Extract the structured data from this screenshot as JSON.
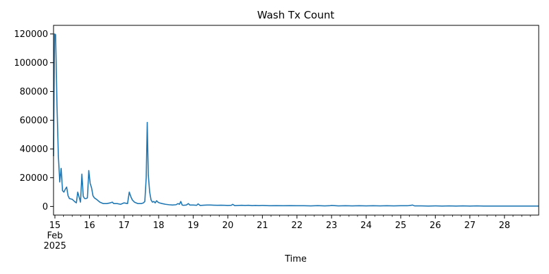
{
  "chart_data": {
    "type": "line",
    "title": "Wash Tx Count",
    "xlabel": "Time",
    "ylabel": "",
    "x_unit": "2025-02 (day of month, fractional)",
    "xlim": [
      14.96,
      28.99
    ],
    "ylim": [
      -6000,
      126000
    ],
    "x_tick_values": [
      15,
      16,
      17,
      18,
      19,
      20,
      21,
      22,
      23,
      24,
      25,
      26,
      27,
      28
    ],
    "x_tick_labels": [
      "15",
      "16",
      "17",
      "18",
      "19",
      "20",
      "21",
      "22",
      "23",
      "24",
      "25",
      "26",
      "27",
      "28"
    ],
    "x_tick_sub": [
      "Feb",
      "2025"
    ],
    "y_tick_values": [
      0,
      20000,
      40000,
      60000,
      80000,
      100000,
      120000
    ],
    "y_tick_labels": [
      "0",
      "20000",
      "40000",
      "60000",
      "80000",
      "100000",
      "120000"
    ],
    "grid": false,
    "color": "#1f77b4",
    "series": [
      {
        "x": [
          14.96,
          14.99,
          15.02,
          15.06,
          15.1,
          15.14,
          15.18,
          15.22,
          15.26,
          15.3,
          15.34,
          15.38,
          15.42,
          15.5,
          15.58,
          15.62,
          15.66,
          15.74,
          15.78,
          15.82,
          15.86,
          15.9,
          15.94,
          15.98,
          16.02,
          16.06,
          16.1,
          16.14,
          16.2,
          16.3,
          16.4,
          16.5,
          16.6,
          16.66,
          16.7,
          16.8,
          16.9,
          17.0,
          17.1,
          17.15,
          17.2,
          17.24,
          17.3,
          17.4,
          17.5,
          17.56,
          17.6,
          17.64,
          17.67,
          17.7,
          17.74,
          17.78,
          17.82,
          17.86,
          17.9,
          17.94,
          17.98,
          18.02,
          18.1,
          18.2,
          18.3,
          18.4,
          18.5,
          18.56,
          18.6,
          18.64,
          18.68,
          18.72,
          18.8,
          18.86,
          18.9,
          19.0,
          19.1,
          19.14,
          19.2,
          19.3,
          19.4,
          19.5,
          19.6,
          19.7,
          19.8,
          19.9,
          20.0,
          20.1,
          20.14,
          20.2,
          20.3,
          20.4,
          20.5,
          20.6,
          20.7,
          20.8,
          20.9,
          21.0,
          21.2,
          21.4,
          21.6,
          21.8,
          22.0,
          22.2,
          22.4,
          22.6,
          22.8,
          22.94,
          23.0,
          23.2,
          23.4,
          23.6,
          23.8,
          24.0,
          24.2,
          24.4,
          24.6,
          24.8,
          25.0,
          25.2,
          25.3,
          25.34,
          25.4,
          25.6,
          25.8,
          26.0,
          26.2,
          26.4,
          26.6,
          26.8,
          27.0,
          27.2,
          27.4,
          27.6,
          27.8,
          28.0,
          28.2,
          28.4,
          28.6,
          28.8,
          28.99
        ],
        "y": [
          35000,
          120000,
          119500,
          70000,
          35000,
          17000,
          26500,
          11000,
          10000,
          12000,
          13500,
          7500,
          5500,
          5000,
          3200,
          2500,
          10000,
          3000,
          22500,
          7000,
          5500,
          5500,
          6000,
          25000,
          16000,
          13000,
          7500,
          6000,
          5000,
          3000,
          2000,
          2000,
          2500,
          3000,
          2000,
          2000,
          1500,
          2500,
          2000,
          10000,
          6500,
          4500,
          3000,
          2000,
          2000,
          2500,
          3500,
          20000,
          58500,
          22000,
          10000,
          4500,
          3000,
          3500,
          2500,
          4000,
          3000,
          2500,
          2000,
          1500,
          1200,
          1000,
          1200,
          2000,
          1500,
          3500,
          1000,
          800,
          1000,
          2000,
          1000,
          1000,
          800,
          1800,
          700,
          900,
          1000,
          1000,
          900,
          800,
          900,
          800,
          700,
          800,
          1500,
          600,
          700,
          800,
          700,
          800,
          600,
          700,
          600,
          700,
          500,
          600,
          500,
          600,
          500,
          500,
          400,
          600,
          400,
          500,
          700,
          400,
          500,
          400,
          500,
          400,
          500,
          400,
          500,
          400,
          500,
          500,
          800,
          1000,
          400,
          400,
          300,
          400,
          300,
          400,
          300,
          400,
          300,
          400,
          300,
          300,
          300,
          300,
          300,
          300,
          300,
          300,
          300
        ]
      }
    ]
  }
}
